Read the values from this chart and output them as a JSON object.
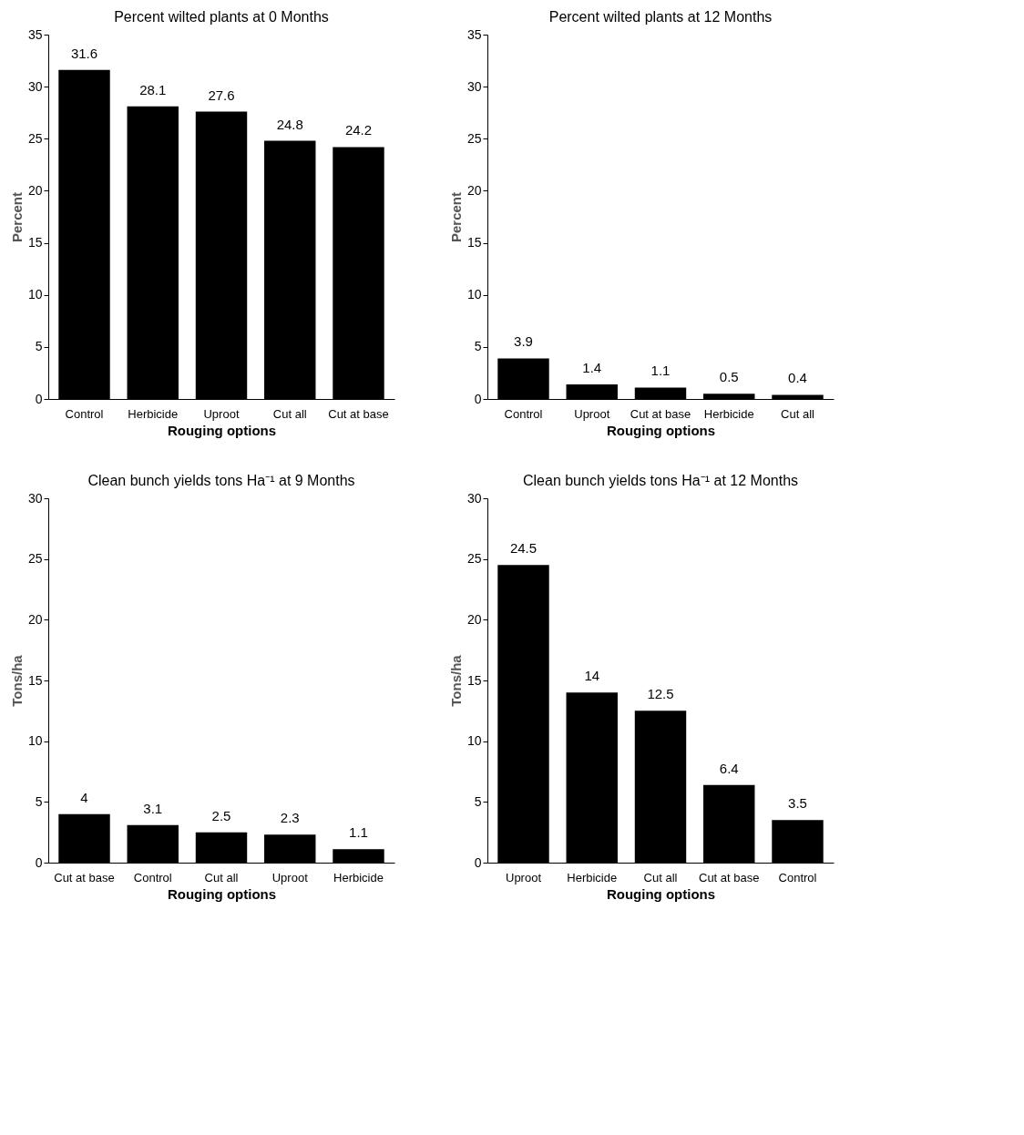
{
  "chart_data": [
    {
      "type": "bar",
      "title": "Percent wilted plants  at 0 Months",
      "ylabel": "Percent",
      "xlabel": "Rouging options",
      "categories": [
        "Control",
        "Herbicide",
        "Uproot",
        "Cut all",
        "Cut at base"
      ],
      "values": [
        31.6,
        28.1,
        27.6,
        24.8,
        24.2
      ],
      "color": "#000000",
      "ylim": [
        0,
        35
      ],
      "yticks": [
        0,
        5,
        10,
        15,
        20,
        25,
        30,
        35
      ],
      "data_labels": true,
      "grid": false
    },
    {
      "type": "bar",
      "title": "Percent wilted plants  at 12 Months",
      "ylabel": "Percent",
      "xlabel": "Rouging options",
      "categories": [
        "Control",
        "Uproot",
        "Cut at base",
        "Herbicide",
        "Cut all"
      ],
      "values": [
        3.9,
        1.4,
        1.1,
        0.5,
        0.4
      ],
      "color": "#000000",
      "ylim": [
        0,
        35
      ],
      "yticks": [
        0,
        5,
        10,
        15,
        20,
        25,
        30,
        35
      ],
      "data_labels": true,
      "grid": false
    },
    {
      "type": "bar",
      "title": "Clean bunch yields  tons Ha⁻¹ at 9 Months",
      "ylabel": "Tons/ha",
      "xlabel": "Rouging options",
      "categories": [
        "Cut at base",
        "Control",
        "Cut all",
        "Uproot",
        "Herbicide"
      ],
      "values": [
        4,
        3.1,
        2.5,
        2.3,
        1.1
      ],
      "color": "#000000",
      "ylim": [
        0,
        30
      ],
      "yticks": [
        0,
        5,
        10,
        15,
        20,
        25,
        30
      ],
      "data_labels": true,
      "grid": false
    },
    {
      "type": "bar",
      "title": "Clean bunch yields  tons Ha⁻¹ at 12 Months",
      "ylabel": "Tons/ha",
      "xlabel": "Rouging options",
      "categories": [
        "Uproot",
        "Herbicide",
        "Cut all",
        "Cut at base",
        "Control"
      ],
      "values": [
        24.5,
        14,
        12.5,
        6.4,
        3.5
      ],
      "color": "#000000",
      "ylim": [
        0,
        30
      ],
      "yticks": [
        0,
        5,
        10,
        15,
        20,
        25,
        30
      ],
      "data_labels": true,
      "grid": false
    }
  ]
}
